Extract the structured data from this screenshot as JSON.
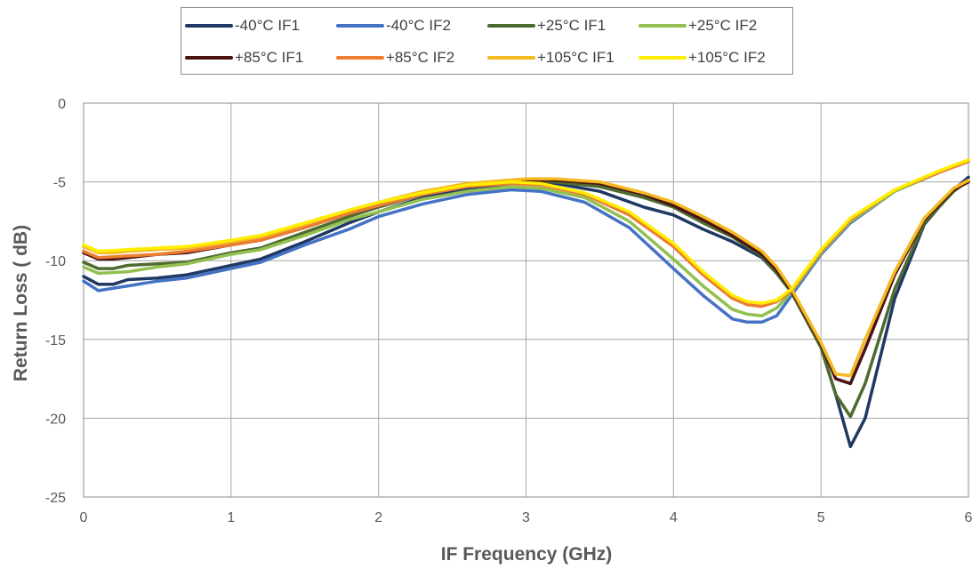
{
  "chart_data": {
    "type": "line",
    "title": "",
    "xlabel": "IF Frequency (GHz)",
    "ylabel": "Return Loss ( dB)",
    "xlim": [
      0,
      6
    ],
    "ylim": [
      -25,
      0
    ],
    "xticks": [
      0,
      1,
      2,
      3,
      4,
      5,
      6
    ],
    "yticks": [
      0,
      -5,
      -10,
      -15,
      -20,
      -25
    ],
    "grid": true,
    "legend_position": "top",
    "series": [
      {
        "name": "-40°C IF1",
        "color": "#1f3864",
        "x": [
          0,
          0.1,
          0.2,
          0.3,
          0.5,
          0.7,
          1.0,
          1.2,
          1.5,
          1.8,
          2.0,
          2.3,
          2.6,
          3.0,
          3.2,
          3.5,
          3.8,
          4.0,
          4.2,
          4.4,
          4.6,
          4.7,
          4.8,
          5.0,
          5.1,
          5.2,
          5.3,
          5.5,
          5.7,
          5.9,
          6.0
        ],
        "y": [
          -11.0,
          -11.5,
          -11.5,
          -11.2,
          -11.1,
          -10.9,
          -10.3,
          -9.9,
          -8.8,
          -7.6,
          -6.9,
          -6.0,
          -5.4,
          -5.0,
          -5.1,
          -5.6,
          -6.6,
          -7.1,
          -8.0,
          -8.8,
          -9.8,
          -10.8,
          -12.0,
          -15.5,
          -18.5,
          -21.8,
          -20.0,
          -12.4,
          -7.7,
          -5.5,
          -4.7
        ]
      },
      {
        "name": "-40°C IF2",
        "color": "#4472c4",
        "x": [
          0,
          0.1,
          0.3,
          0.5,
          0.7,
          1.0,
          1.2,
          1.5,
          1.8,
          2.0,
          2.3,
          2.6,
          2.9,
          3.1,
          3.4,
          3.7,
          4.0,
          4.2,
          4.4,
          4.5,
          4.6,
          4.7,
          4.8,
          5.0,
          5.2,
          5.5,
          5.8,
          6.0
        ],
        "y": [
          -11.3,
          -11.9,
          -11.6,
          -11.3,
          -11.1,
          -10.5,
          -10.1,
          -9.0,
          -8.0,
          -7.2,
          -6.4,
          -5.8,
          -5.5,
          -5.6,
          -6.3,
          -7.9,
          -10.5,
          -12.2,
          -13.7,
          -13.9,
          -13.9,
          -13.5,
          -12.2,
          -9.6,
          -7.6,
          -5.6,
          -4.4,
          -3.6
        ]
      },
      {
        "name": "+25°C IF1",
        "color": "#4e6b2f",
        "x": [
          0,
          0.1,
          0.2,
          0.3,
          0.5,
          0.7,
          1.0,
          1.2,
          1.5,
          1.8,
          2.0,
          2.3,
          2.6,
          3.0,
          3.2,
          3.5,
          3.8,
          4.0,
          4.2,
          4.4,
          4.6,
          4.7,
          4.8,
          5.0,
          5.1,
          5.2,
          5.3,
          5.5,
          5.7,
          5.9,
          6.0
        ],
        "y": [
          -10.1,
          -10.5,
          -10.5,
          -10.3,
          -10.2,
          -10.1,
          -9.5,
          -9.2,
          -8.2,
          -7.2,
          -6.6,
          -5.8,
          -5.3,
          -5.0,
          -5.0,
          -5.3,
          -6.0,
          -6.6,
          -7.6,
          -8.5,
          -9.7,
          -10.8,
          -12.0,
          -15.5,
          -18.5,
          -19.9,
          -17.8,
          -11.8,
          -7.6,
          -5.6,
          -4.9
        ]
      },
      {
        "name": "+25°C IF2",
        "color": "#92c050",
        "x": [
          0,
          0.1,
          0.3,
          0.5,
          0.7,
          1.0,
          1.2,
          1.5,
          1.8,
          2.0,
          2.3,
          2.6,
          2.9,
          3.1,
          3.4,
          3.7,
          4.0,
          4.2,
          4.4,
          4.5,
          4.6,
          4.7,
          4.8,
          5.0,
          5.2,
          5.5,
          5.8,
          6.0
        ],
        "y": [
          -10.4,
          -10.8,
          -10.7,
          -10.4,
          -10.2,
          -9.6,
          -9.3,
          -8.4,
          -7.4,
          -6.9,
          -6.1,
          -5.6,
          -5.3,
          -5.4,
          -6.0,
          -7.5,
          -9.9,
          -11.6,
          -13.1,
          -13.4,
          -13.5,
          -13.0,
          -12.0,
          -9.5,
          -7.5,
          -5.6,
          -4.4,
          -3.7
        ]
      },
      {
        "name": "+85°C IF1",
        "color": "#4a1212",
        "x": [
          0,
          0.1,
          0.2,
          0.3,
          0.5,
          0.7,
          1.0,
          1.2,
          1.5,
          1.8,
          2.0,
          2.3,
          2.6,
          3.0,
          3.2,
          3.5,
          3.8,
          4.0,
          4.2,
          4.4,
          4.6,
          4.7,
          4.8,
          5.0,
          5.1,
          5.2,
          5.3,
          5.5,
          5.7,
          5.9,
          6.0
        ],
        "y": [
          -9.5,
          -9.9,
          -9.9,
          -9.8,
          -9.6,
          -9.5,
          -9.0,
          -8.7,
          -7.9,
          -7.0,
          -6.5,
          -5.7,
          -5.2,
          -4.9,
          -4.9,
          -5.1,
          -5.8,
          -6.5,
          -7.4,
          -8.4,
          -9.6,
          -10.6,
          -11.9,
          -15.3,
          -17.5,
          -17.8,
          -15.6,
          -10.9,
          -7.4,
          -5.5,
          -5.0
        ]
      },
      {
        "name": "+85°C IF2",
        "color": "#ed7d31",
        "x": [
          0,
          0.1,
          0.3,
          0.5,
          0.7,
          1.0,
          1.2,
          1.5,
          1.8,
          2.0,
          2.3,
          2.6,
          2.9,
          3.1,
          3.4,
          3.7,
          4.0,
          4.2,
          4.4,
          4.5,
          4.6,
          4.7,
          4.8,
          5.0,
          5.2,
          5.5,
          5.8,
          6.0
        ],
        "y": [
          -9.4,
          -9.8,
          -9.7,
          -9.6,
          -9.4,
          -9.0,
          -8.7,
          -7.9,
          -7.0,
          -6.5,
          -5.8,
          -5.3,
          -5.1,
          -5.2,
          -5.8,
          -7.1,
          -9.1,
          -10.9,
          -12.4,
          -12.8,
          -12.9,
          -12.6,
          -11.9,
          -9.4,
          -7.4,
          -5.5,
          -4.4,
          -3.7
        ]
      },
      {
        "name": "+105°C IF1",
        "color": "#f5b921",
        "x": [
          0,
          0.1,
          0.2,
          0.3,
          0.5,
          0.7,
          1.0,
          1.2,
          1.5,
          1.8,
          2.0,
          2.3,
          2.6,
          3.0,
          3.2,
          3.5,
          3.8,
          4.0,
          4.2,
          4.4,
          4.6,
          4.7,
          4.8,
          5.0,
          5.1,
          5.2,
          5.3,
          5.5,
          5.7,
          5.9,
          6.0
        ],
        "y": [
          -9.1,
          -9.5,
          -9.5,
          -9.4,
          -9.3,
          -9.2,
          -8.8,
          -8.5,
          -7.7,
          -6.8,
          -6.3,
          -5.6,
          -5.1,
          -4.8,
          -4.8,
          -5.0,
          -5.7,
          -6.3,
          -7.2,
          -8.2,
          -9.4,
          -10.4,
          -11.8,
          -15.2,
          -17.2,
          -17.3,
          -15.0,
          -10.7,
          -7.3,
          -5.4,
          -4.9
        ]
      },
      {
        "name": "+105°C IF2",
        "color": "#ffee00",
        "x": [
          0,
          0.1,
          0.3,
          0.5,
          0.7,
          1.0,
          1.2,
          1.5,
          1.8,
          2.0,
          2.3,
          2.6,
          2.9,
          3.1,
          3.4,
          3.7,
          4.0,
          4.2,
          4.4,
          4.5,
          4.6,
          4.7,
          4.8,
          5.0,
          5.2,
          5.5,
          5.8,
          6.0
        ],
        "y": [
          -9.0,
          -9.4,
          -9.3,
          -9.2,
          -9.1,
          -8.7,
          -8.4,
          -7.6,
          -6.8,
          -6.3,
          -5.7,
          -5.2,
          -5.0,
          -5.1,
          -5.7,
          -6.9,
          -8.9,
          -10.7,
          -12.2,
          -12.6,
          -12.7,
          -12.5,
          -11.8,
          -9.3,
          -7.3,
          -5.5,
          -4.3,
          -3.6
        ]
      }
    ]
  }
}
